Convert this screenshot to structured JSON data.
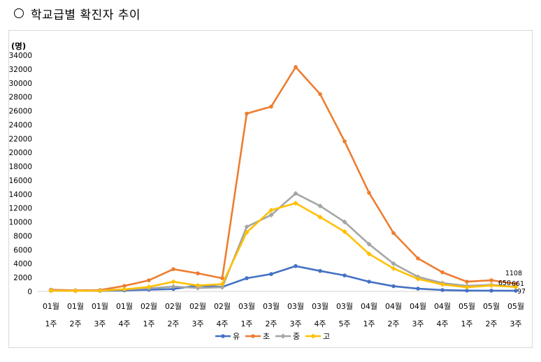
{
  "heading": {
    "icon": "circle-outline-icon",
    "text": "학교급별 확진자 추이"
  },
  "chart_data": {
    "type": "line",
    "title": "",
    "xlabel": "",
    "ylabel": "(명)",
    "ylim": [
      0,
      34000
    ],
    "yticks": [
      0,
      2000,
      4000,
      6000,
      8000,
      10000,
      12000,
      14000,
      16000,
      18000,
      20000,
      22000,
      24000,
      26000,
      28000,
      30000,
      32000,
      34000
    ],
    "grid": false,
    "legend_position": "bottom",
    "categories": [
      [
        "01월",
        "1주"
      ],
      [
        "01월",
        "2주"
      ],
      [
        "01월",
        "3주"
      ],
      [
        "01월",
        "4주"
      ],
      [
        "02월",
        "1주"
      ],
      [
        "02월",
        "2주"
      ],
      [
        "02월",
        "3주"
      ],
      [
        "02월",
        "4주"
      ],
      [
        "03월",
        "1주"
      ],
      [
        "03월",
        "2주"
      ],
      [
        "03월",
        "3주"
      ],
      [
        "03월",
        "4주"
      ],
      [
        "03월",
        "5주"
      ],
      [
        "04월",
        "1주"
      ],
      [
        "04월",
        "2주"
      ],
      [
        "04월",
        "3주"
      ],
      [
        "04월",
        "4주"
      ],
      [
        "05월",
        "1주"
      ],
      [
        "05월",
        "2주"
      ],
      [
        "05월",
        "3주"
      ]
    ],
    "series": [
      {
        "name": "유",
        "color": "#4472C4",
        "marker": "circle",
        "values": [
          100,
          80,
          80,
          150,
          250,
          350,
          850,
          650,
          1900,
          2500,
          3650,
          2950,
          2300,
          1400,
          750,
          400,
          200,
          120,
          110,
          97
        ]
      },
      {
        "name": "초",
        "color": "#ED7D31",
        "marker": "circle",
        "values": [
          250,
          150,
          200,
          800,
          1600,
          3200,
          2600,
          1900,
          25600,
          26600,
          32300,
          28400,
          21600,
          14200,
          8400,
          4750,
          2750,
          1400,
          1600,
          1108
        ]
      },
      {
        "name": "중",
        "color": "#A5A5A5",
        "marker": "diamond",
        "values": [
          150,
          100,
          150,
          300,
          450,
          700,
          500,
          600,
          9300,
          11000,
          14100,
          12300,
          10000,
          6800,
          4000,
          2100,
          1200,
          800,
          950,
          661
        ]
      },
      {
        "name": "고",
        "color": "#FFC000",
        "marker": "diamond",
        "values": [
          100,
          80,
          100,
          300,
          650,
          1400,
          850,
          1050,
          8500,
          11700,
          12700,
          10700,
          8600,
          5400,
          3300,
          1800,
          1000,
          600,
          850,
          650
        ]
      }
    ],
    "end_labels": [
      "1108",
      "650",
      "661",
      "97"
    ]
  }
}
